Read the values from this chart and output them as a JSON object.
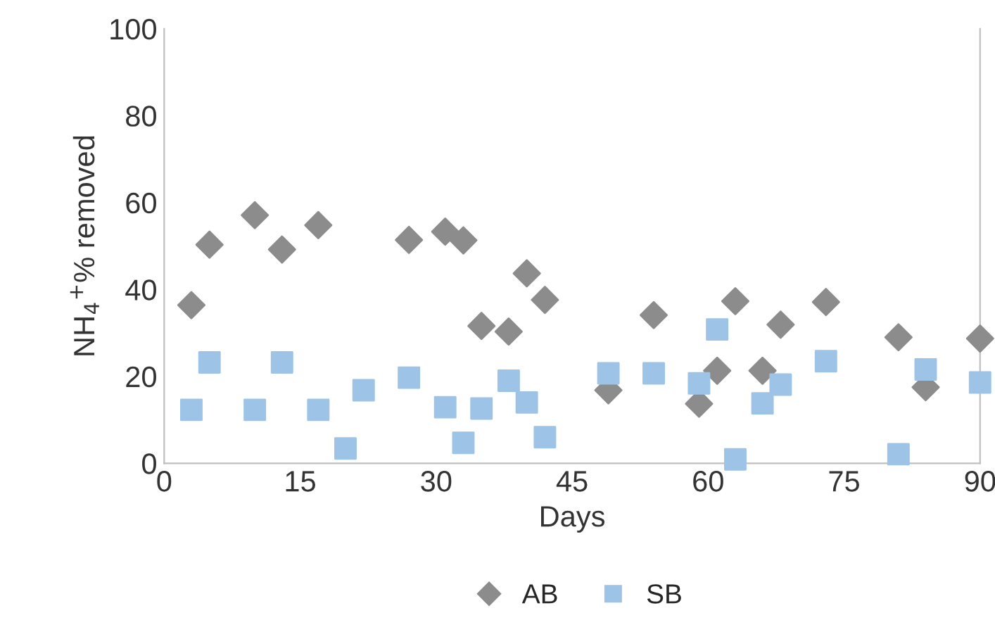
{
  "chart_data": {
    "type": "scatter",
    "xlabel": "Days",
    "ylabel": "NH$_{4}$$^{+}$% removed",
    "series": [
      {
        "name": "AB",
        "color": "#8c8c8c",
        "marker": "diamond",
        "x": [
          3,
          5,
          10,
          13,
          17,
          27,
          31,
          33,
          35,
          38,
          40,
          42,
          49,
          54,
          59,
          61,
          63,
          66,
          68,
          73,
          81,
          84,
          90
        ],
        "values": [
          36.4,
          50.3,
          57.1,
          49.2,
          54.8,
          51.4,
          53.3,
          51.3,
          31.6,
          30.3,
          43.7,
          37.6,
          16.8,
          34.1,
          13.7,
          21.3,
          37.3,
          21.3,
          31.9,
          37.1,
          29.0,
          17.5,
          28.7
        ]
      },
      {
        "name": "SB",
        "color": "#9dc3e6",
        "marker": "square",
        "x": [
          3,
          5,
          10,
          13,
          17,
          20,
          22,
          27,
          31,
          33,
          35,
          38,
          40,
          42,
          49,
          54,
          59,
          61,
          63,
          66,
          68,
          73,
          81,
          84,
          90
        ],
        "values": [
          12.3,
          23.2,
          12.3,
          23.2,
          12.3,
          3.4,
          16.8,
          19.7,
          12.9,
          4.7,
          12.6,
          19.0,
          14.0,
          6.0,
          20.7,
          20.7,
          18.4,
          30.8,
          0.9,
          13.8,
          18.1,
          23.5,
          2.1,
          21.6,
          18.6
        ]
      }
    ],
    "xlim": [
      0,
      90
    ],
    "xticks": [
      0,
      15,
      30,
      45,
      60,
      75,
      90
    ],
    "ylim": [
      0,
      100
    ],
    "yticks": [
      0,
      20,
      40,
      60,
      80,
      100
    ],
    "grid": false,
    "legend": "bottom"
  }
}
